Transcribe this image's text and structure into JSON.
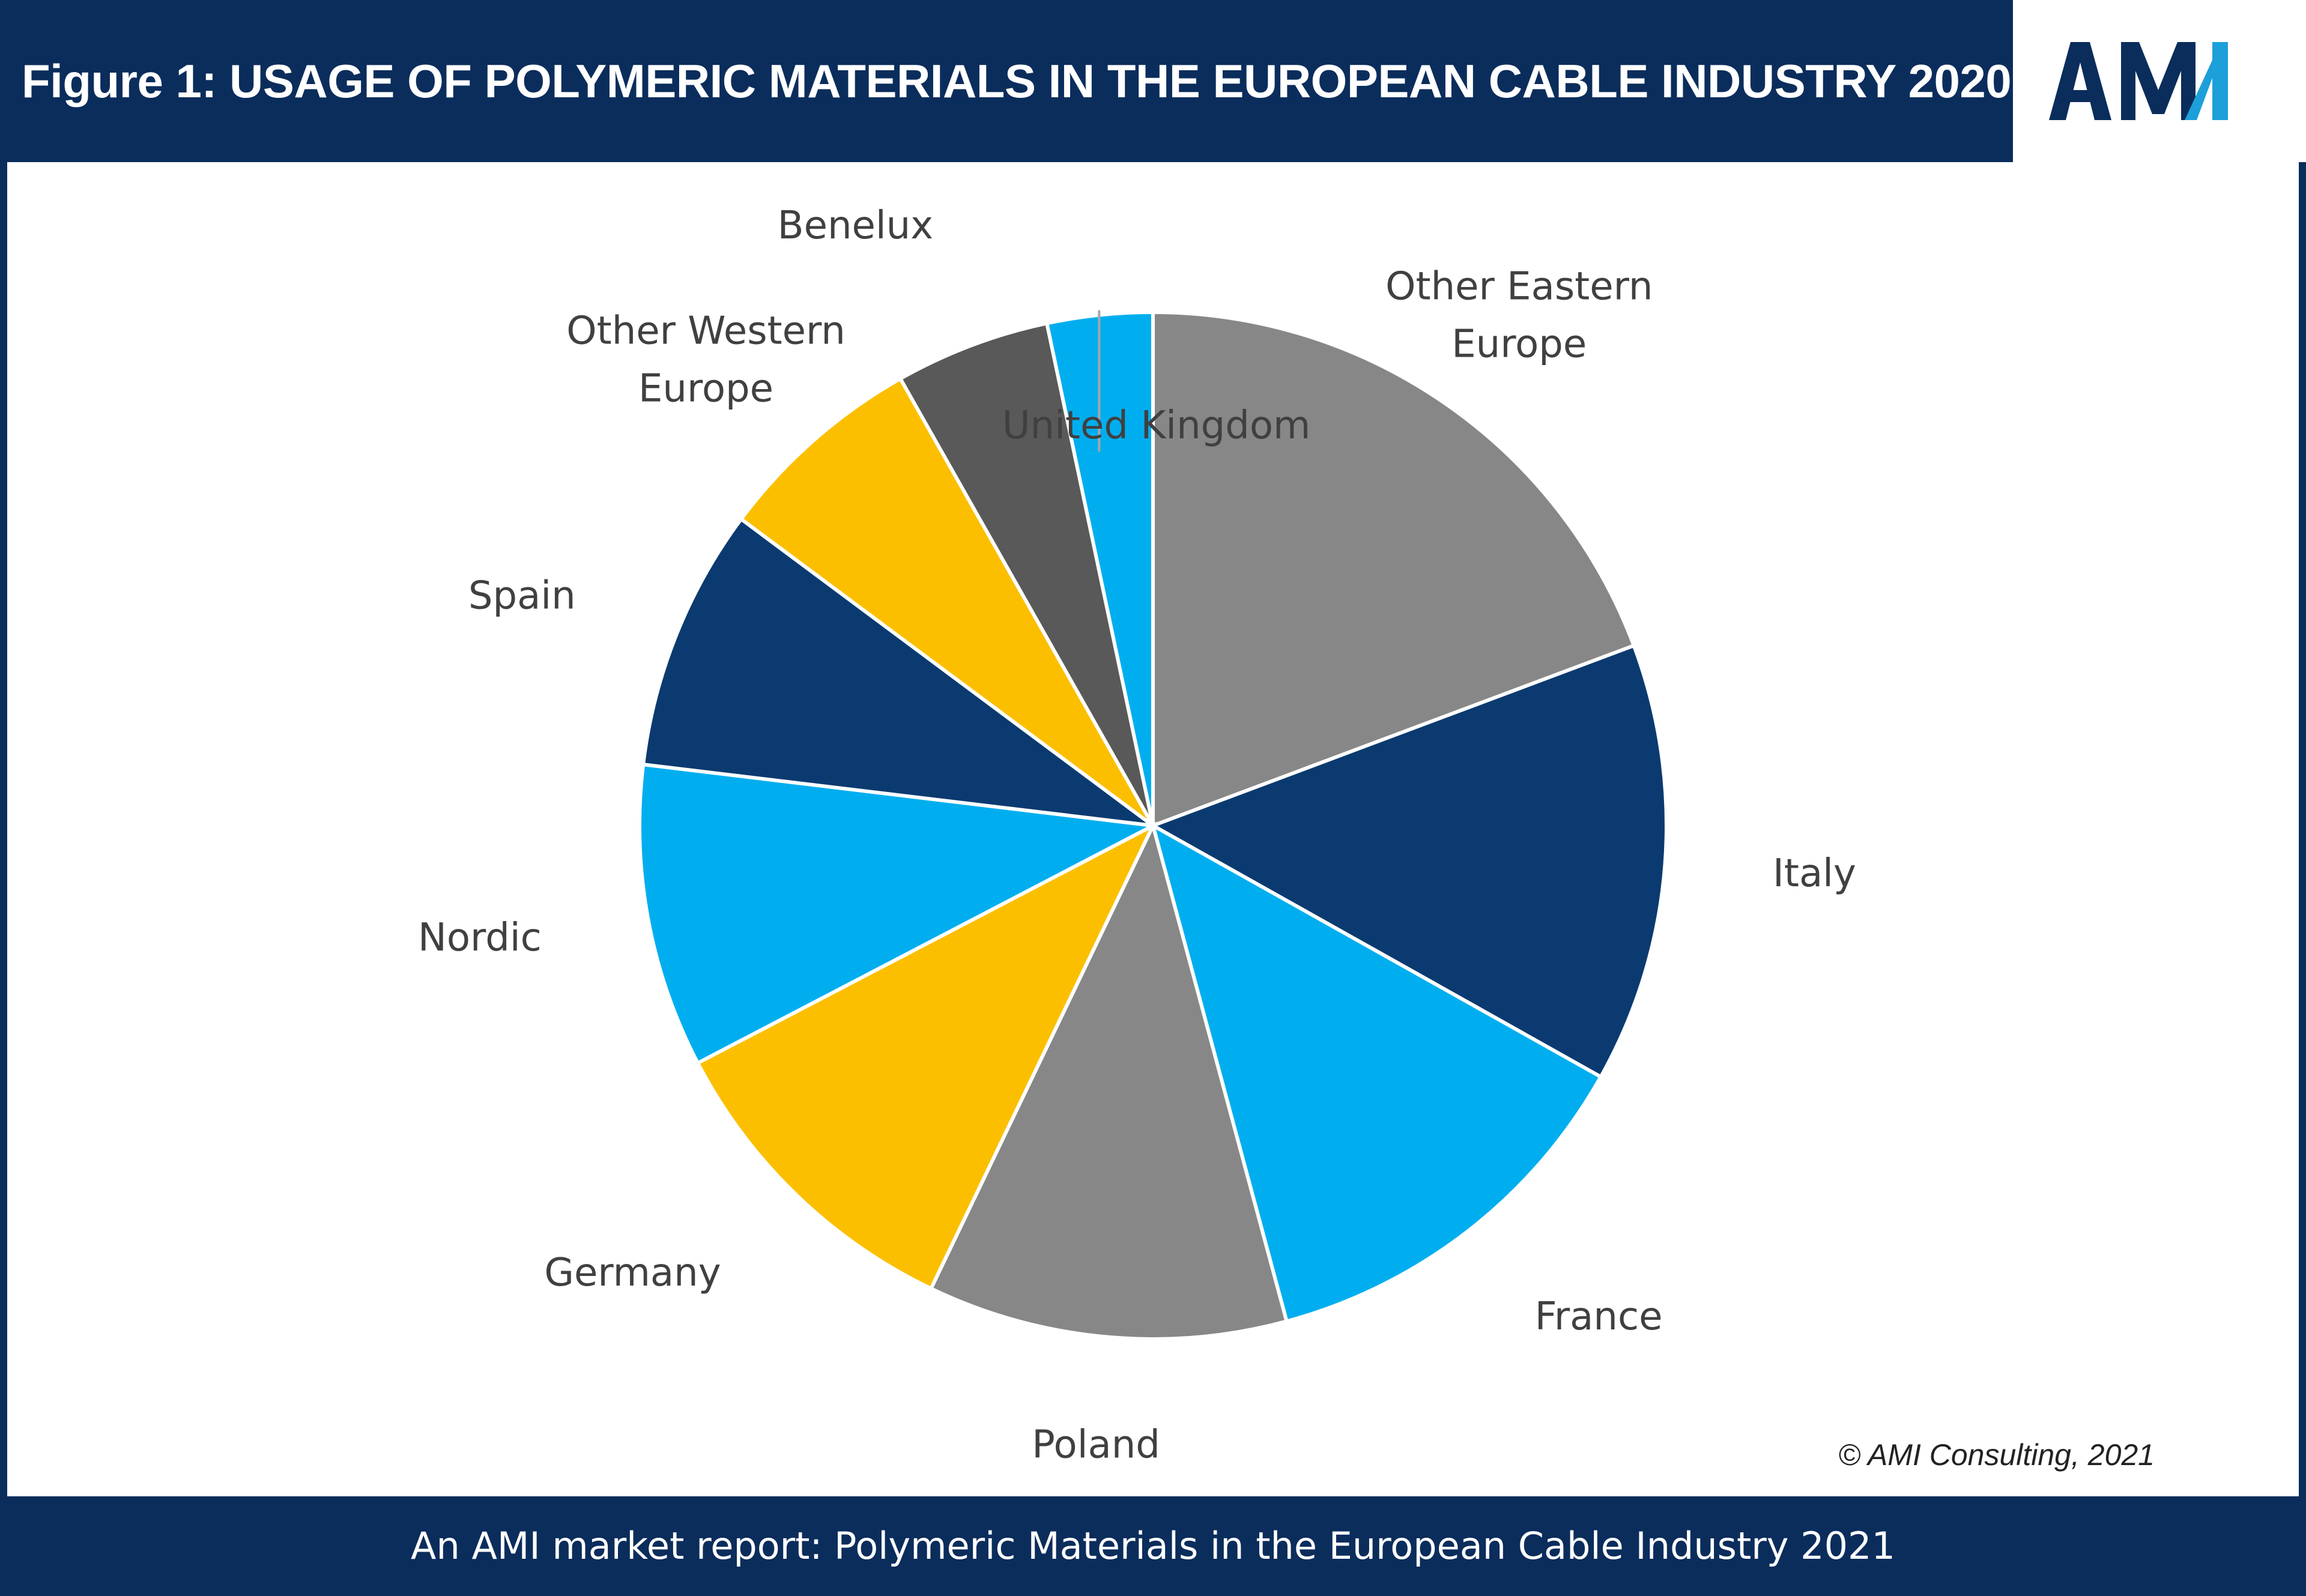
{
  "header": {
    "title": "Figure 1: USAGE OF POLYMERIC MATERIALS IN THE EUROPEAN CABLE INDUSTRY 2020",
    "logo_text": "AMI"
  },
  "chart_data": {
    "type": "pie",
    "title": "Figure 1: USAGE OF POLYMERIC MATERIALS IN THE EUROPEAN CABLE INDUSTRY 2020",
    "start": "12 o'clock",
    "direction": "clockwise",
    "categories": [
      "Other Eastern Europe",
      "Italy",
      "France",
      "Poland",
      "Germany",
      "Nordic",
      "Spain",
      "Other Western Europe",
      "Benelux",
      "United Kingdom"
    ],
    "values": [
      19.8,
      14.2,
      13.0,
      11.6,
      10.5,
      9.8,
      8.5,
      6.8,
      5.0,
      3.4
    ],
    "colors": [
      "#878787",
      "#0b3a70",
      "#00aeef",
      "#878787",
      "#fcbf00",
      "#00aeef",
      "#0b3a70",
      "#fcbf00",
      "#595959",
      "#00aeef"
    ],
    "legend": "none (labels outside slices)"
  },
  "credit": "© AMI Consulting, 2021",
  "footer": {
    "text": "An AMI market report: Polymeric Materials in the European Cable Industry 2021"
  },
  "colors": {
    "brand_navy": "#0b2d5c",
    "logo_blue": "#1d9fd9",
    "background": "#ffffff"
  }
}
